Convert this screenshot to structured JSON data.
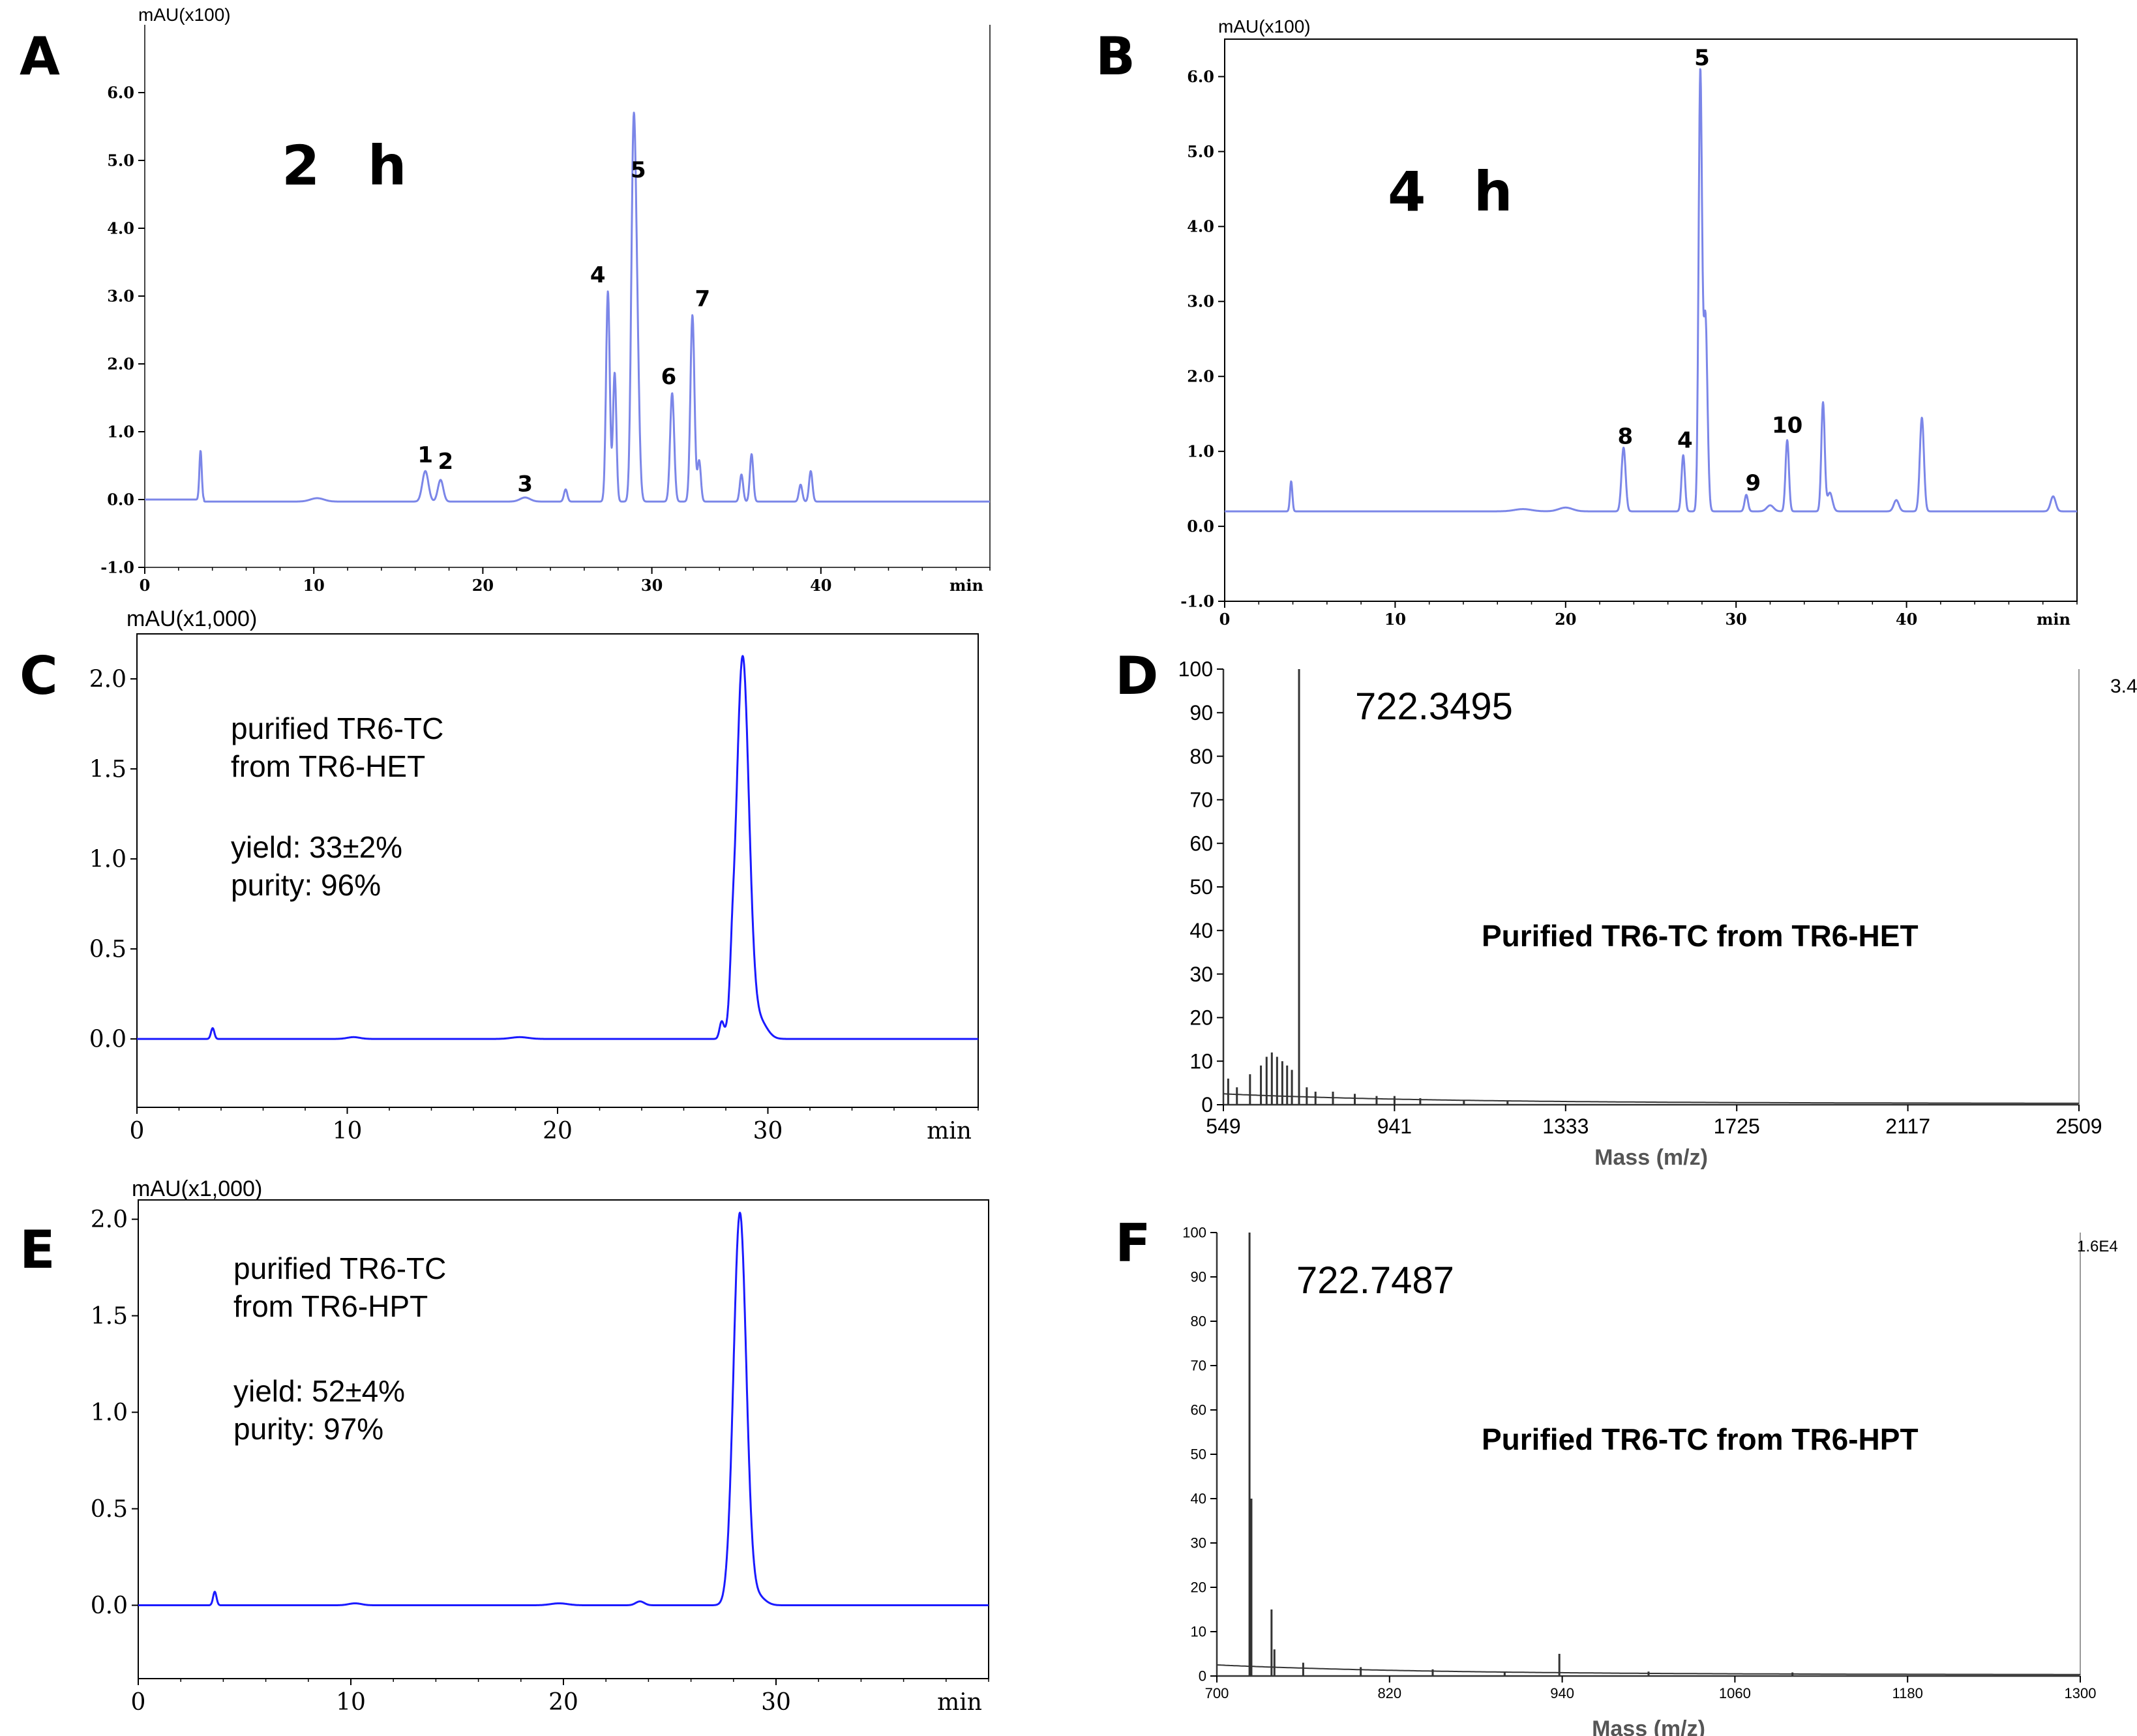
{
  "colors": {
    "hplc_line": "#7b86e8",
    "pure_line": "#1a1aff",
    "ms_line": "#333333",
    "axis": "#000000"
  },
  "panels": [
    {
      "letter": "A",
      "label": "2 h"
    },
    {
      "letter": "B",
      "label": "4 h"
    },
    {
      "letter": "C",
      "line1": "purified TR6-TC",
      "line2": "from TR6-HET",
      "yield": "yield: 33±2%",
      "purity": "purity: 96%"
    },
    {
      "letter": "D",
      "peak": "722.3495",
      "label": "Purified TR6-TC from TR6-HET",
      "corner": "3.4"
    },
    {
      "letter": "E",
      "line1": "purified TR6-TC",
      "line2": "from TR6-HPT",
      "yield": "yield: 52±4%",
      "purity": "purity: 97%"
    },
    {
      "letter": "F",
      "peak": "722.7487",
      "label": "Purified TR6-TC from TR6-HPT",
      "corner": "1.6E4"
    }
  ],
  "chart_data": [
    {
      "id": "A",
      "type": "line",
      "title": "2 h",
      "ylabel": "mAU(x100)",
      "xlabel": "min",
      "xlim": [
        0,
        50
      ],
      "ylim": [
        -1.0,
        7.0
      ],
      "xticks": [
        0,
        10,
        20,
        30,
        40
      ],
      "xtick_labels": [
        "0",
        "10",
        "20",
        "30",
        "40"
      ],
      "yticks": [
        -1,
        0,
        1,
        2,
        3,
        4,
        5,
        6
      ],
      "ytick_labels": [
        "-1.0",
        "0.0",
        "1.0",
        "2.0",
        "3.0",
        "4.0",
        "5.0",
        "6.0"
      ],
      "baseline": 0.0,
      "peaks": [
        [
          3.3,
          0.72,
          0.07
        ],
        [
          10.2,
          0.05,
          0.4
        ],
        [
          16.6,
          0.45,
          0.18
        ],
        [
          17.5,
          0.32,
          0.16
        ],
        [
          22.5,
          0.06,
          0.3
        ],
        [
          24.9,
          0.18,
          0.1
        ],
        [
          27.4,
          3.1,
          0.11
        ],
        [
          27.8,
          1.9,
          0.1
        ],
        [
          28.9,
          4.65,
          0.13
        ],
        [
          29.1,
          2.5,
          0.14
        ],
        [
          31.2,
          1.6,
          0.12
        ],
        [
          32.4,
          2.75,
          0.12
        ],
        [
          32.8,
          0.6,
          0.1
        ],
        [
          35.3,
          0.4,
          0.1
        ],
        [
          35.9,
          0.7,
          0.1
        ],
        [
          38.8,
          0.25,
          0.1
        ],
        [
          39.4,
          0.45,
          0.1
        ]
      ],
      "annotations": [
        {
          "text": "1",
          "x": 16.6,
          "y": 0.55
        },
        {
          "text": "2",
          "x": 17.8,
          "y": 0.45
        },
        {
          "text": "3",
          "x": 22.5,
          "y": 0.12
        },
        {
          "text": "4",
          "x": 26.8,
          "y": 3.2
        },
        {
          "text": "5",
          "x": 29.2,
          "y": 4.75
        },
        {
          "text": "6",
          "x": 31.0,
          "y": 1.7
        },
        {
          "text": "7",
          "x": 33.0,
          "y": 2.85
        }
      ]
    },
    {
      "id": "B",
      "type": "line",
      "title": "4 h",
      "ylabel": "mAU(x100)",
      "xlabel": "min",
      "xlim": [
        0,
        50
      ],
      "ylim": [
        -1.0,
        6.5
      ],
      "xticks": [
        0,
        10,
        20,
        30,
        40
      ],
      "xtick_labels": [
        "0",
        "10",
        "20",
        "30",
        "40"
      ],
      "yticks": [
        -1,
        0,
        1,
        2,
        3,
        4,
        5,
        6
      ],
      "ytick_labels": [
        "-1.0",
        "0.0",
        "1.0",
        "2.0",
        "3.0",
        "4.0",
        "5.0",
        "6.0"
      ],
      "baseline": 0.2,
      "peaks": [
        [
          3.9,
          0.4,
          0.07
        ],
        [
          17.5,
          0.03,
          0.5
        ],
        [
          20.0,
          0.05,
          0.4
        ],
        [
          23.4,
          0.85,
          0.12
        ],
        [
          26.9,
          0.75,
          0.1
        ],
        [
          27.9,
          5.8,
          0.1
        ],
        [
          28.2,
          2.6,
          0.12
        ],
        [
          30.6,
          0.22,
          0.1
        ],
        [
          32.0,
          0.08,
          0.2
        ],
        [
          33.0,
          0.95,
          0.1
        ],
        [
          35.1,
          1.45,
          0.1
        ],
        [
          35.5,
          0.25,
          0.15
        ],
        [
          39.4,
          0.15,
          0.15
        ],
        [
          40.9,
          1.25,
          0.12
        ],
        [
          48.6,
          0.2,
          0.15
        ]
      ],
      "annotations": [
        {
          "text": "5",
          "x": 28.0,
          "y": 6.15
        },
        {
          "text": "8",
          "x": 23.5,
          "y": 1.1
        },
        {
          "text": "4",
          "x": 27.0,
          "y": 1.05
        },
        {
          "text": "9",
          "x": 31.0,
          "y": 0.48
        },
        {
          "text": "10",
          "x": 33.0,
          "y": 1.25
        }
      ]
    },
    {
      "id": "C",
      "type": "line",
      "ylabel": "mAU(x1,000)",
      "xlabel": "min",
      "xlim": [
        0,
        40
      ],
      "ylim": [
        -0.38,
        2.25
      ],
      "xticks": [
        0,
        10,
        20,
        30
      ],
      "xtick_labels": [
        "0",
        "10",
        "20",
        "30"
      ],
      "yticks": [
        0,
        0.5,
        1.0,
        1.5,
        2.0
      ],
      "ytick_labels": [
        "0.0",
        "0.5",
        "1.0",
        "1.5",
        "2.0"
      ],
      "baseline": 0.0,
      "peaks": [
        [
          3.6,
          0.06,
          0.08
        ],
        [
          10.3,
          0.01,
          0.3
        ],
        [
          18.2,
          0.01,
          0.4
        ],
        [
          27.8,
          0.09,
          0.1
        ],
        [
          28.3,
          0.17,
          0.1
        ],
        [
          28.8,
          2.12,
          0.3
        ],
        [
          29.6,
          0.1,
          0.35
        ]
      ]
    },
    {
      "id": "D",
      "type": "line",
      "ylabel": "",
      "xlabel": "Mass (m/z)",
      "xlim": [
        549,
        2509
      ],
      "ylim": [
        0,
        100
      ],
      "xticks": [
        549,
        941,
        1333,
        1725,
        2117,
        2509
      ],
      "xtick_labels": [
        "549",
        "941",
        "1333",
        "1725",
        "2117",
        "2509"
      ],
      "yticks": [
        0,
        10,
        20,
        30,
        40,
        50,
        60,
        70,
        80,
        90,
        100
      ],
      "ytick_labels": [
        "0",
        "10",
        "20",
        "30",
        "40",
        "50",
        "60",
        "70",
        "80",
        "90",
        "100"
      ],
      "sticks": [
        [
          560,
          6
        ],
        [
          580,
          4
        ],
        [
          610,
          7
        ],
        [
          635,
          9
        ],
        [
          648,
          11
        ],
        [
          660,
          12
        ],
        [
          672,
          11
        ],
        [
          684,
          10
        ],
        [
          695,
          9
        ],
        [
          706,
          8
        ],
        [
          722.35,
          100
        ],
        [
          740,
          4
        ],
        [
          760,
          3
        ],
        [
          800,
          3
        ],
        [
          850,
          2.5
        ],
        [
          900,
          2
        ],
        [
          941,
          2
        ],
        [
          1000,
          1.5
        ],
        [
          1100,
          1
        ],
        [
          1200,
          1
        ]
      ]
    },
    {
      "id": "E",
      "type": "line",
      "ylabel": "mAU(x1,000)",
      "xlabel": "min",
      "xlim": [
        0,
        40
      ],
      "ylim": [
        -0.38,
        2.1
      ],
      "xticks": [
        0,
        10,
        20,
        30
      ],
      "xtick_labels": [
        "0",
        "10",
        "20",
        "30"
      ],
      "yticks": [
        0,
        0.5,
        1.0,
        1.5,
        2.0
      ],
      "ytick_labels": [
        "0.0",
        "0.5",
        "1.0",
        "1.5",
        "2.0"
      ],
      "baseline": 0.0,
      "peaks": [
        [
          3.6,
          0.07,
          0.08
        ],
        [
          10.2,
          0.01,
          0.3
        ],
        [
          19.8,
          0.01,
          0.4
        ],
        [
          23.6,
          0.02,
          0.2
        ],
        [
          28.3,
          2.03,
          0.3
        ],
        [
          29.1,
          0.05,
          0.35
        ]
      ]
    },
    {
      "id": "F",
      "type": "line",
      "ylabel": "",
      "xlabel": "Mass (m/z)",
      "xlim": [
        700,
        1300
      ],
      "ylim": [
        0,
        100
      ],
      "xticks": [
        700,
        820,
        940,
        1060,
        1180,
        1300
      ],
      "xtick_labels": [
        "700",
        "820",
        "940",
        "1060",
        "1180",
        "1300"
      ],
      "yticks": [
        0,
        10,
        20,
        30,
        40,
        50,
        60,
        70,
        80,
        90,
        100
      ],
      "ytick_labels": [
        "0",
        "10",
        "20",
        "30",
        "40",
        "50",
        "60",
        "70",
        "80",
        "90",
        "100"
      ],
      "sticks": [
        [
          722.7,
          100
        ],
        [
          724,
          40
        ],
        [
          738,
          15
        ],
        [
          740,
          6
        ],
        [
          760,
          3
        ],
        [
          800,
          2
        ],
        [
          850,
          1.5
        ],
        [
          900,
          1
        ],
        [
          938,
          5
        ],
        [
          1000,
          1
        ],
        [
          1100,
          0.8
        ]
      ]
    }
  ]
}
